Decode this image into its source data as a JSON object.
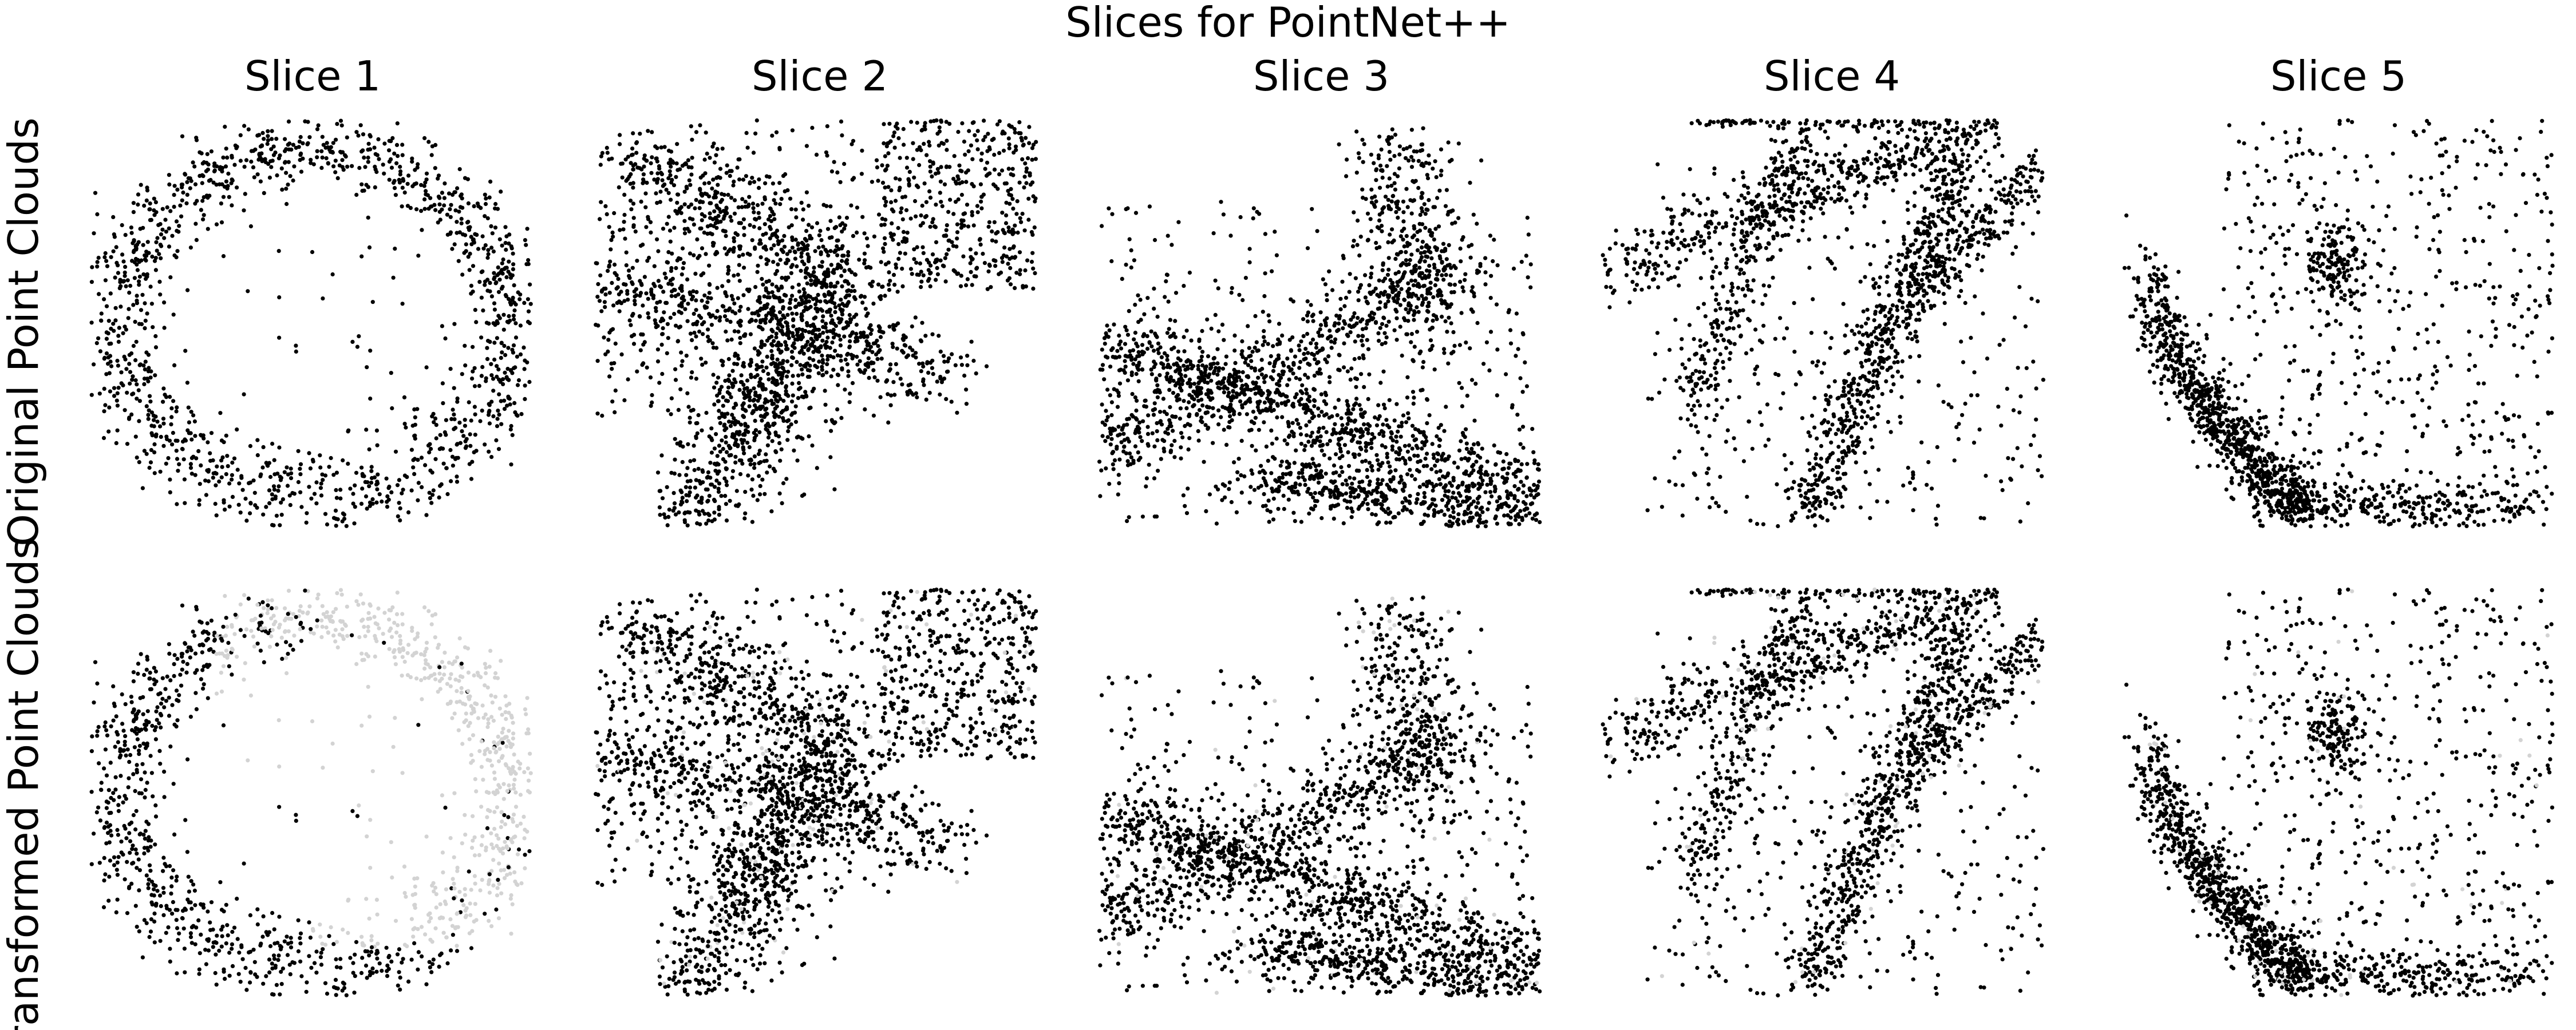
{
  "figure": {
    "title": "Slices for PointNet++",
    "column_titles": [
      "Slice 1",
      "Slice 2",
      "Slice 3",
      "Slice 4",
      "Slice 5"
    ],
    "row_titles": [
      "Original Point Clouds",
      "Transformed Point Clouds"
    ]
  },
  "colors": {
    "kept_point": "#000000",
    "dropped_point": "#d3d3d3",
    "background": "#ffffff"
  },
  "chart_data": [
    {
      "type": "scatter",
      "panel": "Slice 1 / Original Point Clouds",
      "shape": "ring",
      "seed": 11,
      "point_count": 1400,
      "dropped_fraction": 0.0,
      "axes": "off",
      "xlim": [
        0,
        1
      ],
      "ylim": [
        0,
        1
      ]
    },
    {
      "type": "scatter",
      "panel": "Slice 2 / Original Point Clouds",
      "shape": "cluster-branches",
      "seed": 22,
      "point_count": 2600,
      "dropped_fraction": 0.0,
      "axes": "off",
      "xlim": [
        0,
        1
      ],
      "ylim": [
        0,
        1
      ]
    },
    {
      "type": "scatter",
      "panel": "Slice 3 / Original Point Clouds",
      "shape": "crossed-bands",
      "seed": 33,
      "point_count": 2600,
      "dropped_fraction": 0.0,
      "axes": "off",
      "xlim": [
        0,
        1
      ],
      "ylim": [
        0,
        1
      ]
    },
    {
      "type": "scatter",
      "panel": "Slice 4 / Original Point Clouds",
      "shape": "branching-lines",
      "seed": 44,
      "point_count": 2200,
      "dropped_fraction": 0.0,
      "axes": "off",
      "xlim": [
        0,
        1
      ],
      "ylim": [
        0,
        1
      ]
    },
    {
      "type": "scatter",
      "panel": "Slice 5 / Original Point Clouds",
      "shape": "curved-basin",
      "seed": 55,
      "point_count": 1800,
      "dropped_fraction": 0.0,
      "axes": "off",
      "xlim": [
        0,
        1
      ],
      "ylim": [
        0,
        1
      ]
    },
    {
      "type": "scatter",
      "panel": "Slice 1 / Transformed Point Clouds",
      "shape": "ring",
      "seed": 11,
      "point_count": 1400,
      "dropped_fraction": 0.4,
      "dropped_region": "right",
      "axes": "off",
      "xlim": [
        0,
        1
      ],
      "ylim": [
        0,
        1
      ]
    },
    {
      "type": "scatter",
      "panel": "Slice 2 / Transformed Point Clouds",
      "shape": "cluster-branches",
      "seed": 22,
      "point_count": 2600,
      "dropped_fraction": 0.05,
      "axes": "off",
      "xlim": [
        0,
        1
      ],
      "ylim": [
        0,
        1
      ]
    },
    {
      "type": "scatter",
      "panel": "Slice 3 / Transformed Point Clouds",
      "shape": "crossed-bands",
      "seed": 33,
      "point_count": 2600,
      "dropped_fraction": 0.05,
      "axes": "off",
      "xlim": [
        0,
        1
      ],
      "ylim": [
        0,
        1
      ]
    },
    {
      "type": "scatter",
      "panel": "Slice 4 / Transformed Point Clouds",
      "shape": "branching-lines",
      "seed": 44,
      "point_count": 2200,
      "dropped_fraction": 0.05,
      "axes": "off",
      "xlim": [
        0,
        1
      ],
      "ylim": [
        0,
        1
      ]
    },
    {
      "type": "scatter",
      "panel": "Slice 5 / Transformed Point Clouds",
      "shape": "curved-basin",
      "seed": 55,
      "point_count": 1800,
      "dropped_fraction": 0.05,
      "axes": "off",
      "xlim": [
        0,
        1
      ],
      "ylim": [
        0,
        1
      ]
    }
  ]
}
